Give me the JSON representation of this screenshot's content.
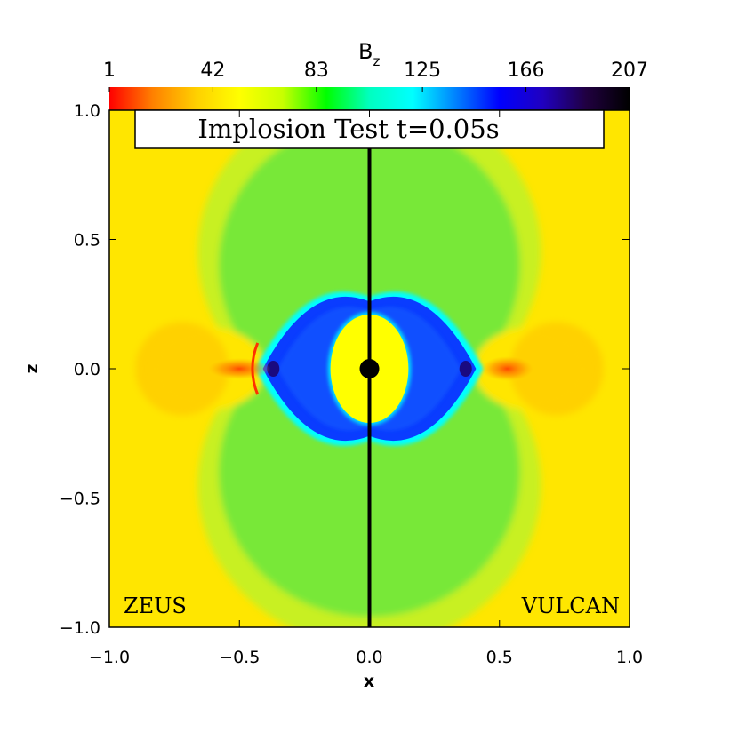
{
  "chart_data": {
    "type": "heatmap",
    "title": "Implosion Test t=0.05s",
    "xlabel": "x",
    "ylabel": "z",
    "xlim": [
      -1.0,
      1.0
    ],
    "ylim": [
      -1.0,
      1.0
    ],
    "x_ticks": [
      -1.0,
      -0.5,
      0.0,
      0.5,
      1.0
    ],
    "y_ticks": [
      -1.0,
      -0.5,
      0.0,
      0.5,
      1.0
    ],
    "x_tick_labels": [
      "−1.0",
      "−0.5",
      "0.0",
      "0.5",
      "1.0"
    ],
    "y_tick_labels": [
      "−1.0",
      "−0.5",
      "0.0",
      "0.5",
      "1.0"
    ],
    "colorbar": {
      "label_main": "B",
      "label_sub": "z",
      "min": 1,
      "max": 207,
      "ticks": [
        1,
        42,
        83,
        125,
        166,
        207
      ],
      "tick_labels": [
        "1",
        "42",
        "83",
        "125",
        "166",
        "207"
      ],
      "colors": [
        "#ff0000",
        "#ff8000",
        "#ffd000",
        "#ffff00",
        "#c8ff00",
        "#00ff00",
        "#00ffc0",
        "#00ffff",
        "#0080ff",
        "#0000ff",
        "#2000c0",
        "#200040",
        "#000000"
      ]
    },
    "panels": [
      "ZEUS",
      "VULCAN"
    ],
    "grid": false,
    "field_colors": {
      "background": "#ffe600",
      "outer_lobe": "#c8f020",
      "field_lobe": "#78e838",
      "ring": "#00ffff",
      "cavity": "#0a3cff",
      "core": "#ffff00",
      "jet": "#ff5000",
      "center_dot": "#000000",
      "divider": "#000000"
    }
  }
}
